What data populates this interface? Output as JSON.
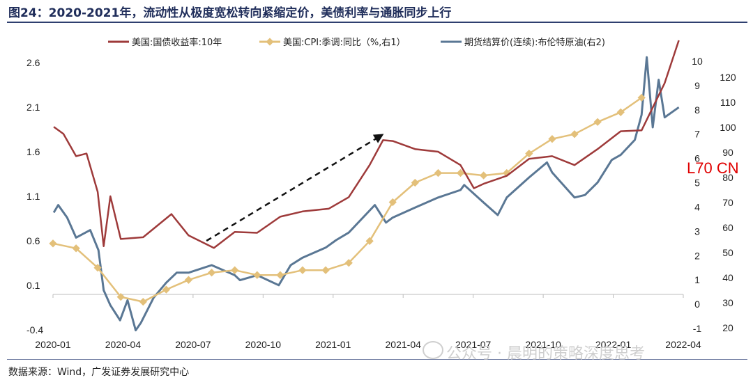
{
  "title": "图24：2020-2021年，流动性从极度宽松转向紧缩定价，美债利率与通胀同步上行",
  "source": "数据来源：Wind，广发证券发展研究中心",
  "stamp": "L70 CN",
  "watermark": "公众号 · 晨明的策略深度思考",
  "chart_data": {
    "type": "line",
    "x_ticks": [
      "2020-01",
      "2020-04",
      "2020-07",
      "2020-10",
      "2021-01",
      "2021-04",
      "2021-07",
      "2021-10",
      "2022-01",
      "2022-04"
    ],
    "y_left": {
      "ticks": [
        "2.6",
        "2.1",
        "1.6",
        "1.1",
        "0.6",
        "0.1",
        "-0.4"
      ],
      "range": [
        -0.4,
        2.6
      ]
    },
    "y_right1": {
      "ticks": [
        "10",
        "9",
        "8",
        "7",
        "6",
        "5",
        "4",
        "3",
        "2",
        "1",
        "0",
        "-1"
      ],
      "range": [
        -1,
        10
      ]
    },
    "y_right2": {
      "ticks": [
        "120",
        "110",
        "100",
        "90",
        "80",
        "70",
        "60",
        "50",
        "40",
        "30",
        "20"
      ],
      "range": [
        20,
        125
      ]
    },
    "series": [
      {
        "name": "美国:国债收益率:10年",
        "axis": "left",
        "color": "#9e3a3a",
        "x": [
          "2020-01-02",
          "2020-01-15",
          "2020-02-01",
          "2020-02-15",
          "2020-03-01",
          "2020-03-09",
          "2020-03-18",
          "2020-04-01",
          "2020-05-01",
          "2020-06-08",
          "2020-07-01",
          "2020-08-04",
          "2020-09-01",
          "2020-10-01",
          "2020-11-01",
          "2020-12-01",
          "2021-01-05",
          "2021-02-01",
          "2021-03-01",
          "2021-03-19",
          "2021-04-01",
          "2021-05-01",
          "2021-06-01",
          "2021-07-01",
          "2021-07-19",
          "2021-08-01",
          "2021-09-01",
          "2021-10-01",
          "2021-11-01",
          "2021-12-01",
          "2022-01-01",
          "2022-02-01",
          "2022-03-01",
          "2022-04-01",
          "2022-04-20"
        ],
        "values": [
          1.88,
          1.8,
          1.55,
          1.58,
          1.15,
          0.54,
          1.1,
          0.62,
          0.64,
          0.9,
          0.66,
          0.52,
          0.7,
          0.69,
          0.87,
          0.93,
          0.96,
          1.09,
          1.45,
          1.73,
          1.72,
          1.63,
          1.6,
          1.45,
          1.19,
          1.24,
          1.33,
          1.52,
          1.55,
          1.45,
          1.63,
          1.83,
          1.84,
          2.37,
          2.85
        ]
      },
      {
        "name": "美国:CPI:季调:同比（%,右1）",
        "axis": "right1",
        "color": "#e3c07a",
        "x": [
          "2020-01-01",
          "2020-02-01",
          "2020-03-01",
          "2020-04-01",
          "2020-05-01",
          "2020-06-01",
          "2020-07-01",
          "2020-08-01",
          "2020-09-01",
          "2020-10-01",
          "2020-11-01",
          "2020-12-01",
          "2021-01-01",
          "2021-02-01",
          "2021-03-01",
          "2021-04-01",
          "2021-05-01",
          "2021-06-01",
          "2021-07-01",
          "2021-08-01",
          "2021-09-01",
          "2021-10-01",
          "2021-11-01",
          "2021-12-01",
          "2022-01-01",
          "2022-02-01",
          "2022-03-01"
        ],
        "values": [
          2.5,
          2.3,
          1.5,
          0.3,
          0.1,
          0.6,
          1.0,
          1.3,
          1.4,
          1.2,
          1.2,
          1.4,
          1.4,
          1.7,
          2.6,
          4.2,
          5.0,
          5.4,
          5.4,
          5.3,
          5.4,
          6.2,
          6.8,
          7.0,
          7.5,
          7.9,
          8.5
        ]
      },
      {
        "name": "期货结算价(连续):布伦特原油(右2)",
        "axis": "right2",
        "color": "#5a7794",
        "x": [
          "2020-01-02",
          "2020-01-08",
          "2020-01-20",
          "2020-02-01",
          "2020-02-20",
          "2020-03-02",
          "2020-03-09",
          "2020-03-18",
          "2020-03-31",
          "2020-04-10",
          "2020-04-21",
          "2020-04-28",
          "2020-05-15",
          "2020-06-01",
          "2020-06-15",
          "2020-07-01",
          "2020-08-01",
          "2020-09-01",
          "2020-09-08",
          "2020-10-01",
          "2020-10-30",
          "2020-11-15",
          "2020-12-01",
          "2021-01-01",
          "2021-01-15",
          "2021-02-01",
          "2021-03-08",
          "2021-03-23",
          "2021-04-01",
          "2021-05-01",
          "2021-06-01",
          "2021-07-01",
          "2021-07-06",
          "2021-08-01",
          "2021-08-20",
          "2021-09-01",
          "2021-10-01",
          "2021-10-25",
          "2021-11-01",
          "2021-12-01",
          "2021-12-15",
          "2022-01-01",
          "2022-01-20",
          "2022-02-01",
          "2022-02-20",
          "2022-03-01",
          "2022-03-08",
          "2022-03-16",
          "2022-03-24",
          "2022-04-01",
          "2022-04-20"
        ],
        "values": [
          66,
          69,
          64,
          56,
          59,
          51,
          35,
          29,
          23,
          31,
          19,
          22,
          32,
          38,
          42,
          42,
          45,
          41,
          39,
          41,
          37,
          45,
          48,
          52,
          55,
          58,
          69,
          62,
          64,
          68,
          72,
          75,
          77,
          70,
          65,
          72,
          80,
          86,
          82,
          72,
          73,
          78,
          87,
          89,
          95,
          105,
          128,
          100,
          119,
          104,
          108
        ]
      }
    ],
    "annotation": {
      "type": "arrow",
      "style": "dashed",
      "from": [
        "2020-07-25",
        0.6
      ],
      "to": [
        "2021-03-20",
        1.8
      ],
      "axis": "left"
    }
  }
}
